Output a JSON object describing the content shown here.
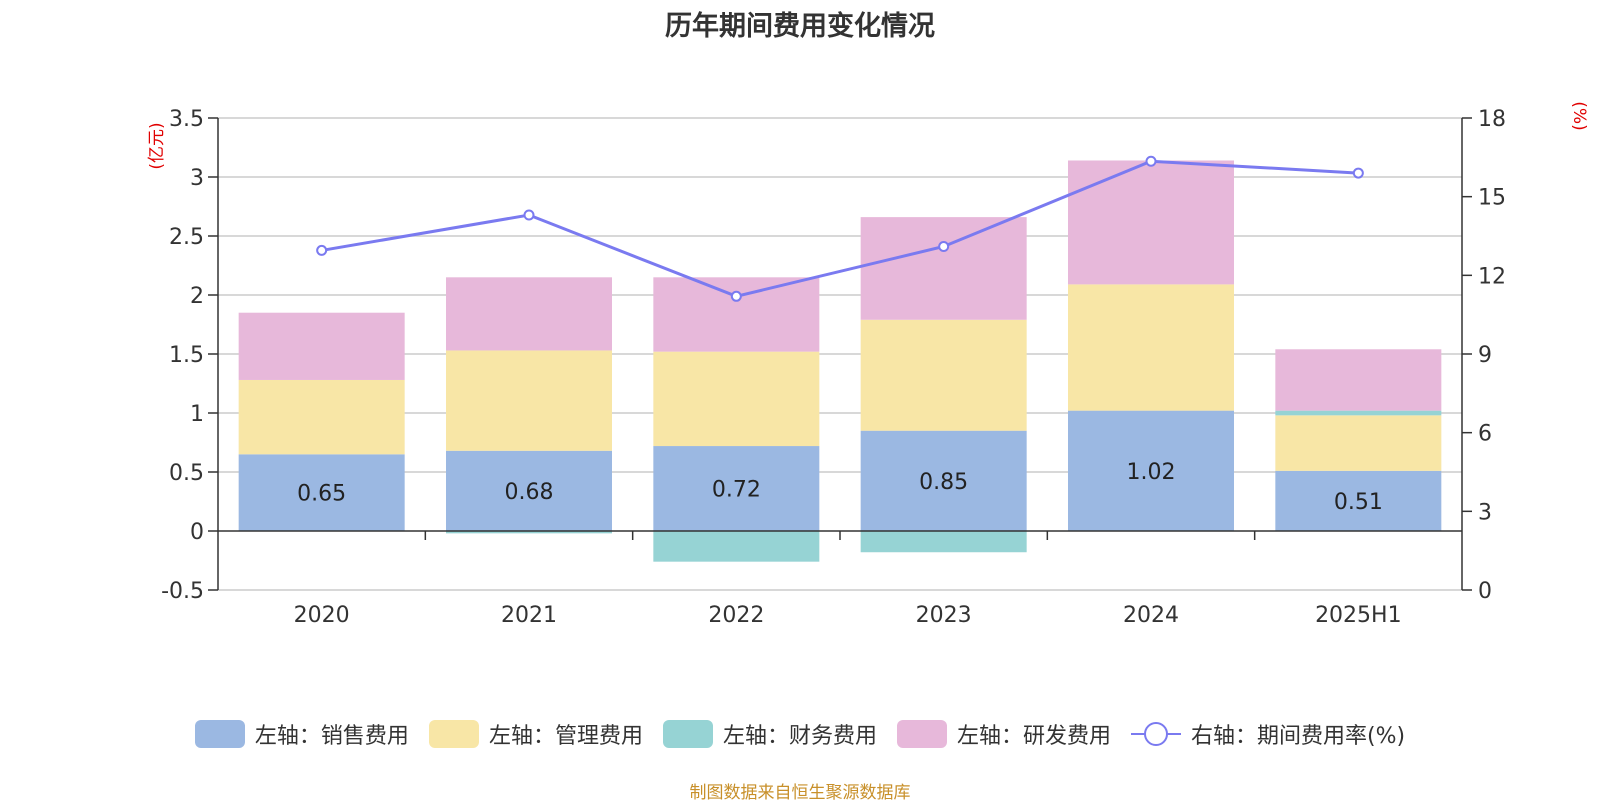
{
  "chart_data": {
    "type": "bar",
    "title": "历年期间费用变化情况",
    "categories": [
      "2020",
      "2021",
      "2022",
      "2023",
      "2024",
      "2025H1"
    ],
    "left_axis": {
      "unit": "(亿元)",
      "ylim": [
        -0.5,
        3.5
      ],
      "ticks": [
        "-0.5",
        "0",
        "0.5",
        "1",
        "1.5",
        "2",
        "2.5",
        "3",
        "3.5"
      ]
    },
    "right_axis": {
      "unit": "(%)",
      "ylim": [
        0,
        18
      ],
      "ticks": [
        "0",
        "3",
        "6",
        "9",
        "12",
        "15",
        "18"
      ]
    },
    "stacked": true,
    "series": [
      {
        "name": "左轴：销售费用",
        "axis": "left",
        "type": "bar",
        "color": "#9bb8e2",
        "values": [
          0.65,
          0.68,
          0.72,
          0.85,
          1.02,
          0.51
        ],
        "data_labels": [
          "0.65",
          "0.68",
          "0.72",
          "0.85",
          "1.02",
          "0.51"
        ]
      },
      {
        "name": "左轴：管理费用",
        "axis": "left",
        "type": "bar",
        "color": "#f8e6a6",
        "values": [
          0.63,
          0.85,
          0.8,
          0.94,
          1.07,
          0.47
        ]
      },
      {
        "name": "左轴：财务费用",
        "axis": "left",
        "type": "bar",
        "color": "#96d3d4",
        "values": [
          0.0,
          -0.02,
          -0.26,
          -0.18,
          0.0,
          0.04
        ]
      },
      {
        "name": "左轴：研发费用",
        "axis": "left",
        "type": "bar",
        "color": "#e7b8da",
        "values": [
          0.57,
          0.62,
          0.63,
          0.87,
          1.05,
          0.52
        ]
      },
      {
        "name": "右轴：期间费用率(%)",
        "axis": "right",
        "type": "line",
        "color": "#7a7af0",
        "values": [
          12.95,
          14.3,
          11.2,
          13.1,
          16.35,
          15.9
        ]
      }
    ],
    "grid": true,
    "legend_position": "bottom"
  },
  "source": "制图数据来自恒生聚源数据库"
}
